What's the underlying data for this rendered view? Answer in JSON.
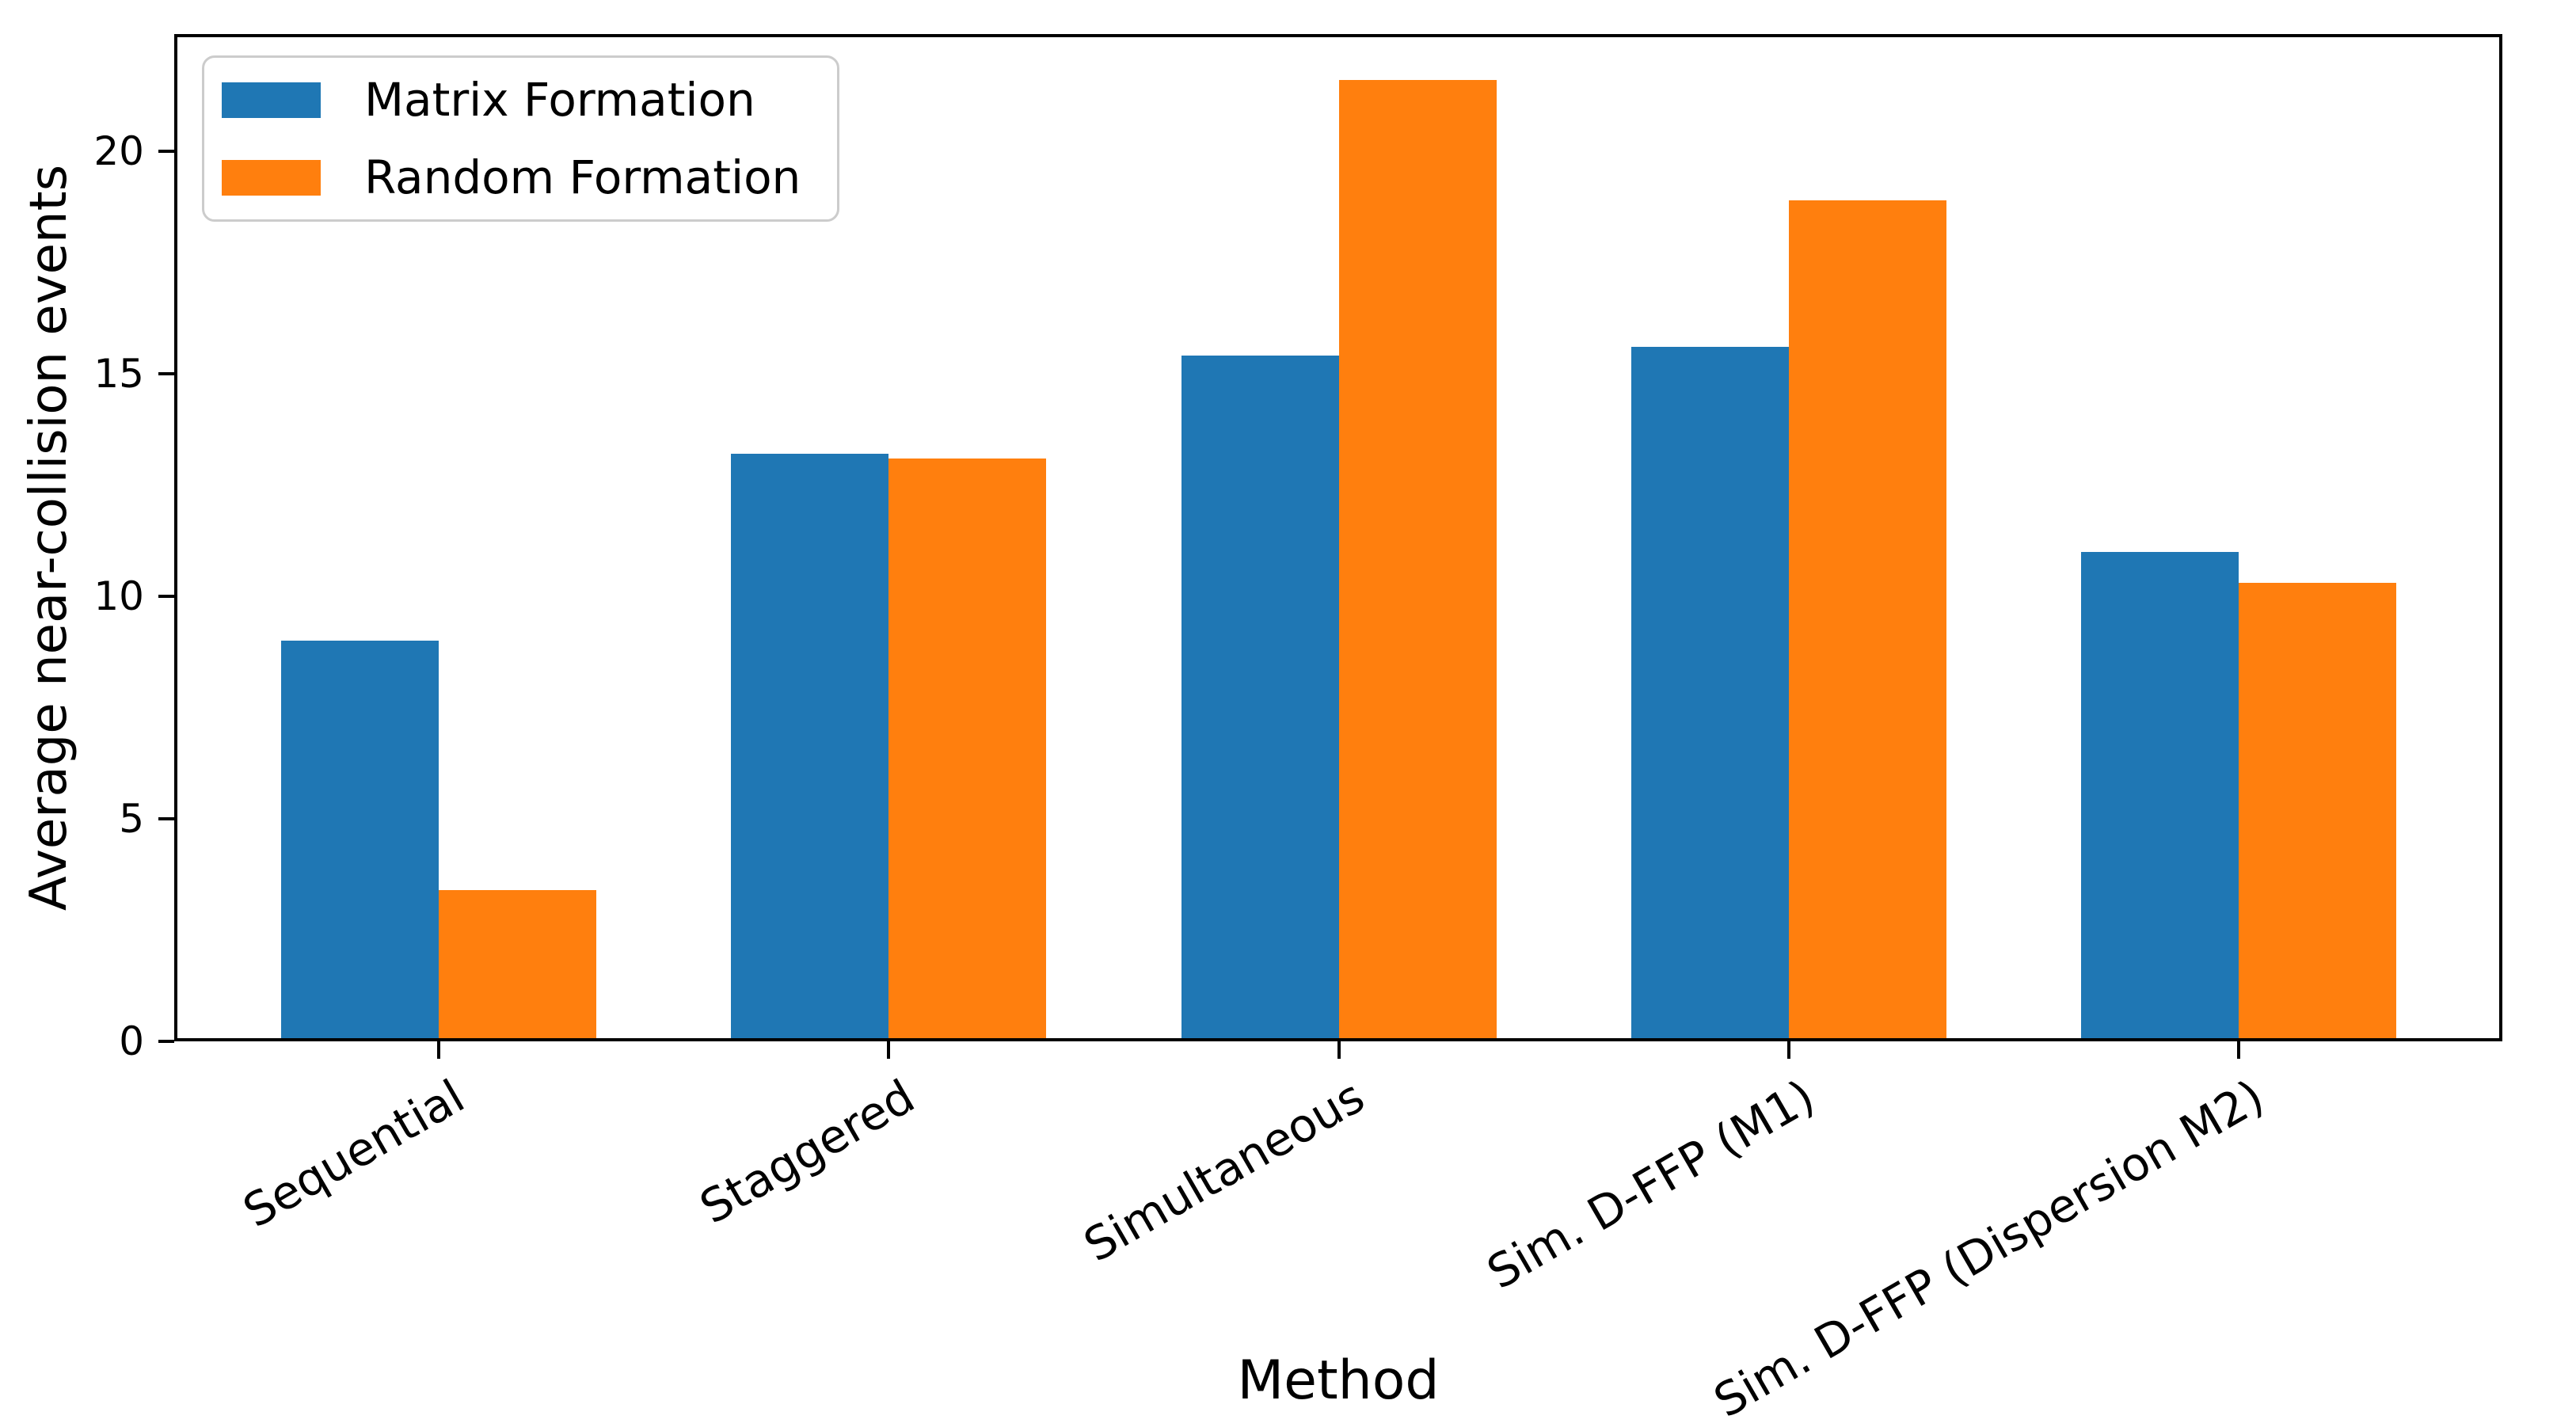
{
  "chart_data": {
    "type": "bar",
    "title": "",
    "xlabel": "Method",
    "ylabel": "Average near-collision events",
    "categories": [
      "Sequential",
      "Staggered",
      "Simultaneous",
      "Sim. D-FFP (M1)",
      "Sim. D-FFP (Dispersion M2)"
    ],
    "series": [
      {
        "name": "Matrix Formation",
        "color": "#1f77b4",
        "values": [
          9.0,
          13.2,
          15.4,
          15.6,
          11.0
        ]
      },
      {
        "name": "Random Formation",
        "color": "#ff7f0e",
        "values": [
          3.4,
          13.1,
          21.6,
          18.9,
          10.3
        ]
      }
    ],
    "y_ticks": [
      0,
      5,
      10,
      15,
      20
    ],
    "ylim": [
      0,
      22.63
    ],
    "grid": false,
    "legend_position": "upper left",
    "xtick_rotation_deg": 30
  }
}
